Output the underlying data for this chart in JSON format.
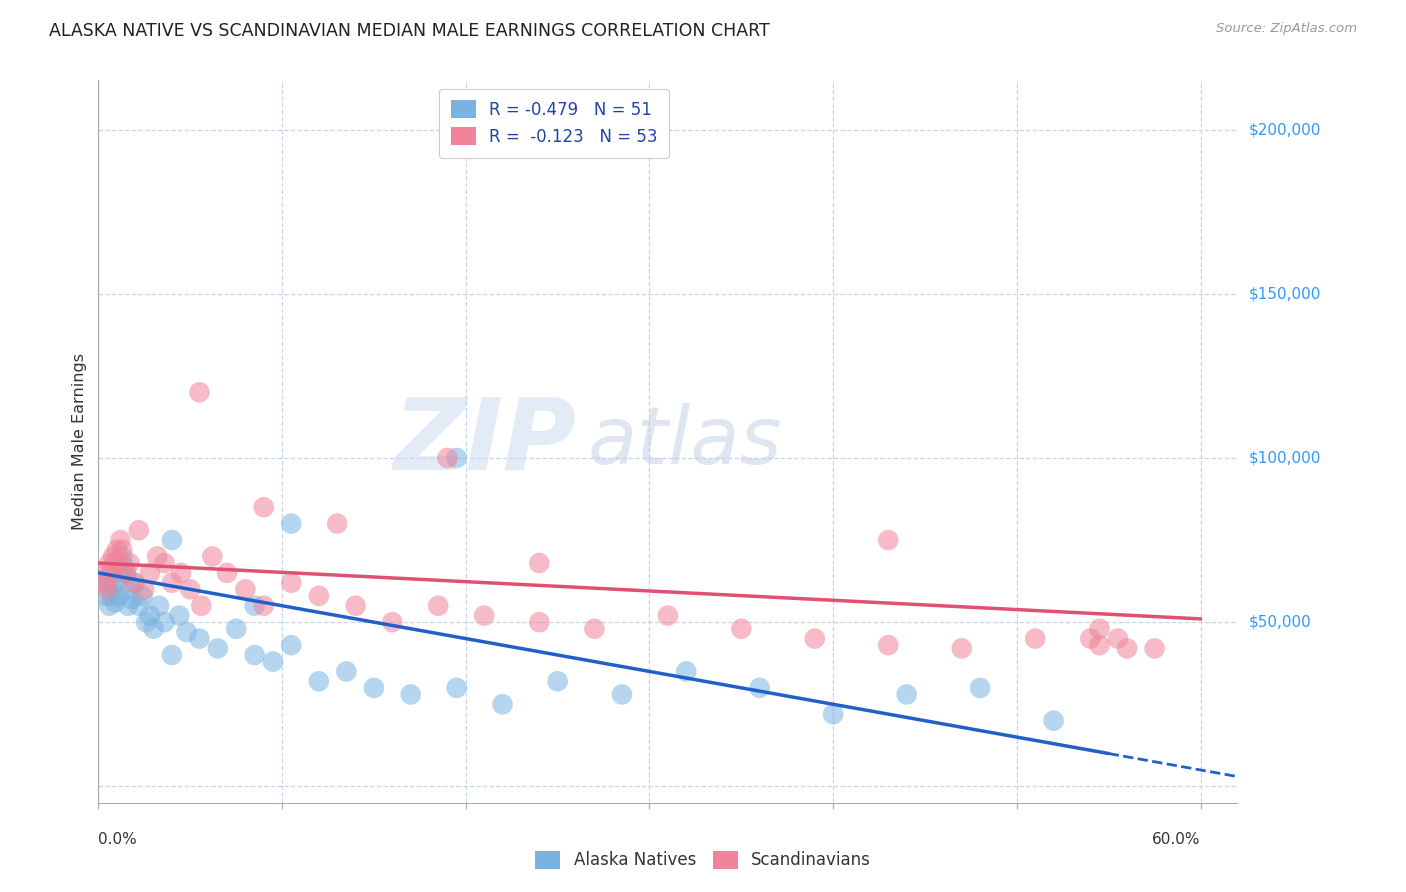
{
  "title": "ALASKA NATIVE VS SCANDINAVIAN MEDIAN MALE EARNINGS CORRELATION CHART",
  "source": "Source: ZipAtlas.com",
  "ylabel": "Median Male Earnings",
  "xlim": [
    0.0,
    0.62
  ],
  "ylim": [
    -5000,
    215000
  ],
  "yticks": [
    0,
    50000,
    100000,
    150000,
    200000
  ],
  "ytick_labels": [
    "",
    "$50,000",
    "$100,000",
    "$150,000",
    "$200,000"
  ],
  "xticks": [
    0.0,
    0.1,
    0.2,
    0.3,
    0.4,
    0.5,
    0.6
  ],
  "watermark_zip": "ZIP",
  "watermark_atlas": "atlas",
  "r_alaska": -0.479,
  "n_alaska": 51,
  "r_scandi": -0.123,
  "n_scandi": 53,
  "alaska_marker_color": "#7ab3e0",
  "scandi_marker_color": "#f0849a",
  "alaska_line_color": "#2060c8",
  "scandi_line_color": "#e05070",
  "background_color": "#ffffff",
  "grid_color": "#c8d4e8",
  "title_color": "#222222",
  "source_color": "#999999",
  "ylabel_color": "#333333",
  "right_tick_color": "#3399ff",
  "legend_text_color": "#2244aa",
  "bottom_legend_color": "#333333",
  "alaska_x": [
    0.003,
    0.004,
    0.005,
    0.006,
    0.007,
    0.008,
    0.009,
    0.01,
    0.011,
    0.012,
    0.013,
    0.014,
    0.015,
    0.016,
    0.017,
    0.018,
    0.02,
    0.022,
    0.024,
    0.026,
    0.028,
    0.03,
    0.033,
    0.036,
    0.04,
    0.044,
    0.048,
    0.055,
    0.065,
    0.075,
    0.085,
    0.095,
    0.105,
    0.12,
    0.135,
    0.15,
    0.17,
    0.195,
    0.22,
    0.25,
    0.285,
    0.32,
    0.36,
    0.4,
    0.44,
    0.48,
    0.52,
    0.195,
    0.105,
    0.085,
    0.04
  ],
  "alaska_y": [
    63000,
    58000,
    62000,
    55000,
    58000,
    60000,
    56000,
    62000,
    58000,
    65000,
    70000,
    67000,
    65000,
    55000,
    60000,
    57000,
    62000,
    55000,
    58000,
    50000,
    52000,
    48000,
    55000,
    50000,
    75000,
    52000,
    47000,
    45000,
    42000,
    48000,
    40000,
    38000,
    43000,
    32000,
    35000,
    30000,
    28000,
    30000,
    25000,
    32000,
    28000,
    35000,
    30000,
    22000,
    28000,
    30000,
    20000,
    100000,
    80000,
    55000,
    40000
  ],
  "scandi_x": [
    0.003,
    0.004,
    0.005,
    0.006,
    0.007,
    0.008,
    0.009,
    0.01,
    0.011,
    0.012,
    0.013,
    0.015,
    0.017,
    0.019,
    0.022,
    0.025,
    0.028,
    0.032,
    0.036,
    0.04,
    0.045,
    0.05,
    0.056,
    0.062,
    0.07,
    0.08,
    0.09,
    0.105,
    0.12,
    0.14,
    0.16,
    0.185,
    0.21,
    0.24,
    0.27,
    0.31,
    0.35,
    0.39,
    0.43,
    0.47,
    0.51,
    0.545,
    0.575,
    0.055,
    0.09,
    0.13,
    0.19,
    0.24,
    0.43,
    0.54,
    0.545,
    0.555,
    0.56
  ],
  "scandi_y": [
    65000,
    62000,
    60000,
    68000,
    65000,
    70000,
    68000,
    72000,
    68000,
    75000,
    72000,
    65000,
    68000,
    62000,
    78000,
    60000,
    65000,
    70000,
    68000,
    62000,
    65000,
    60000,
    55000,
    70000,
    65000,
    60000,
    55000,
    62000,
    58000,
    55000,
    50000,
    55000,
    52000,
    50000,
    48000,
    52000,
    48000,
    45000,
    43000,
    42000,
    45000,
    43000,
    42000,
    120000,
    85000,
    80000,
    100000,
    68000,
    75000,
    45000,
    48000,
    45000,
    42000
  ],
  "ak_trend_x0": 0.0,
  "ak_trend_y0": 65000,
  "ak_trend_x1": 0.55,
  "ak_trend_y1": 10000,
  "sc_trend_x0": 0.0,
  "sc_trend_y0": 68000,
  "sc_trend_x1": 0.6,
  "sc_trend_y1": 51000
}
